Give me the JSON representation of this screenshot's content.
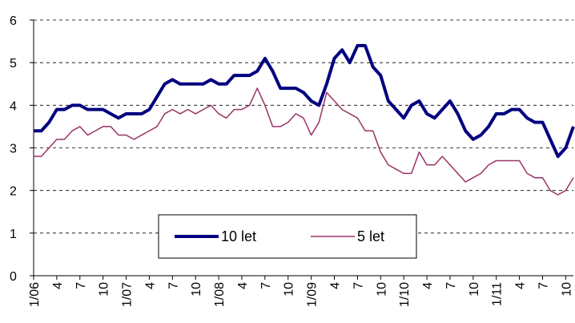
{
  "chart_data": {
    "type": "line",
    "categories": [
      "1/06",
      null,
      null,
      "4",
      null,
      null,
      "7",
      null,
      null,
      "10",
      null,
      null,
      "1/07",
      null,
      null,
      "4",
      null,
      null,
      "7",
      null,
      null,
      "10",
      null,
      null,
      "1/08",
      null,
      null,
      "4",
      null,
      null,
      "7",
      null,
      null,
      "10",
      null,
      null,
      "1/09",
      null,
      null,
      "4",
      null,
      null,
      "7",
      null,
      null,
      "10",
      null,
      null,
      "1/10",
      null,
      null,
      "4",
      null,
      null,
      "7",
      null,
      null,
      "10",
      null,
      null,
      "1/11",
      null,
      null,
      "4",
      null,
      null,
      "7",
      null,
      null,
      "10",
      null
    ],
    "series": [
      {
        "name": "10 let",
        "color": "#000080",
        "values": [
          3.4,
          3.4,
          3.6,
          3.9,
          3.9,
          4.0,
          4.0,
          3.9,
          3.9,
          3.9,
          3.8,
          3.7,
          3.8,
          3.8,
          3.8,
          3.9,
          4.2,
          4.5,
          4.6,
          4.5,
          4.5,
          4.5,
          4.5,
          4.6,
          4.5,
          4.5,
          4.7,
          4.7,
          4.7,
          4.8,
          5.1,
          4.8,
          4.4,
          4.4,
          4.4,
          4.3,
          4.1,
          4.0,
          4.5,
          5.1,
          5.3,
          5.0,
          5.4,
          5.4,
          4.9,
          4.7,
          4.1,
          3.9,
          3.7,
          4.0,
          4.1,
          3.8,
          3.7,
          3.9,
          4.1,
          3.8,
          3.4,
          3.2,
          3.3,
          3.5,
          3.8,
          3.8,
          3.9,
          3.9,
          3.7,
          3.6,
          3.6,
          3.2,
          2.8,
          3.0,
          3.5
        ]
      },
      {
        "name": "5 let",
        "color": "#993366",
        "values": [
          2.8,
          2.8,
          3.0,
          3.2,
          3.2,
          3.4,
          3.5,
          3.3,
          3.4,
          3.5,
          3.5,
          3.3,
          3.3,
          3.2,
          3.3,
          3.4,
          3.5,
          3.8,
          3.9,
          3.8,
          3.9,
          3.8,
          3.9,
          4.0,
          3.8,
          3.7,
          3.9,
          3.9,
          4.0,
          4.4,
          4.0,
          3.5,
          3.5,
          3.6,
          3.8,
          3.7,
          3.3,
          3.6,
          4.3,
          4.1,
          3.9,
          3.8,
          3.7,
          3.4,
          3.4,
          2.9,
          2.6,
          2.5,
          2.4,
          2.4,
          2.9,
          2.6,
          2.6,
          2.8,
          2.6,
          2.4,
          2.2,
          2.3,
          2.4,
          2.6,
          2.7,
          2.7,
          2.7,
          2.7,
          2.4,
          2.3,
          2.3,
          2.0,
          1.9,
          2.0,
          2.3
        ]
      }
    ],
    "ylim": [
      0,
      6
    ],
    "yticks": [
      0,
      1,
      2,
      3,
      4,
      5,
      6
    ],
    "grid": true,
    "legend": "bottom-center"
  }
}
